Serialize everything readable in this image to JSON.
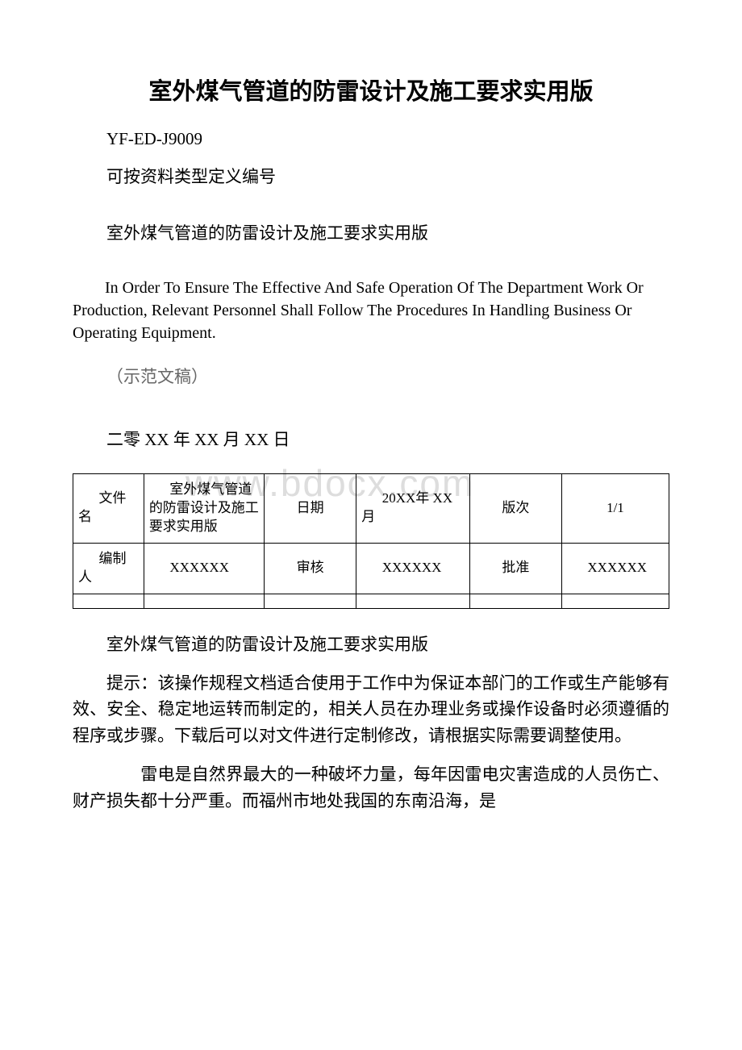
{
  "title": "室外煤气管道的防雷设计及施工要求实用版",
  "doc_code": "YF-ED-J9009",
  "code_note": "可按资料类型定义编号",
  "repeat_title": "室外煤气管道的防雷设计及施工要求实用版",
  "english_text": "In Order To Ensure The Effective And Safe Operation Of The Department Work Or Production, Relevant Personnel Shall Follow The Procedures In Handling Business Or Operating Equipment.",
  "sample_note": "（示范文稿）",
  "date_line": "二零 XX 年 XX 月 XX 日",
  "watermark": "www.bdocx.com",
  "table": {
    "row1": {
      "c1": "文件名",
      "c2": "室外煤气管道的防雷设计及施工要求实用版",
      "c3": "日期",
      "c4": "20XX年 XX 月",
      "c5": "版次",
      "c6": "1/1"
    },
    "row2": {
      "c1": "编制人",
      "c2": "XXXXXX",
      "c3": "审核",
      "c4": "XXXXXX",
      "c5": "批准",
      "c6": "XXXXXX"
    }
  },
  "section_title": "室外煤气管道的防雷设计及施工要求实用版",
  "paragraph1": "提示：该操作规程文档适合使用于工作中为保证本部门的工作或生产能够有效、安全、稳定地运转而制定的，相关人员在办理业务或操作设备时必须遵循的程序或步骤。下载后可以对文件进行定制修改，请根据实际需要调整使用。",
  "paragraph2": "　　雷电是自然界最大的一种破坏力量，每年因雷电灾害造成的人员伤亡、财产损失都十分严重。而福州市地处我国的东南沿海，是"
}
